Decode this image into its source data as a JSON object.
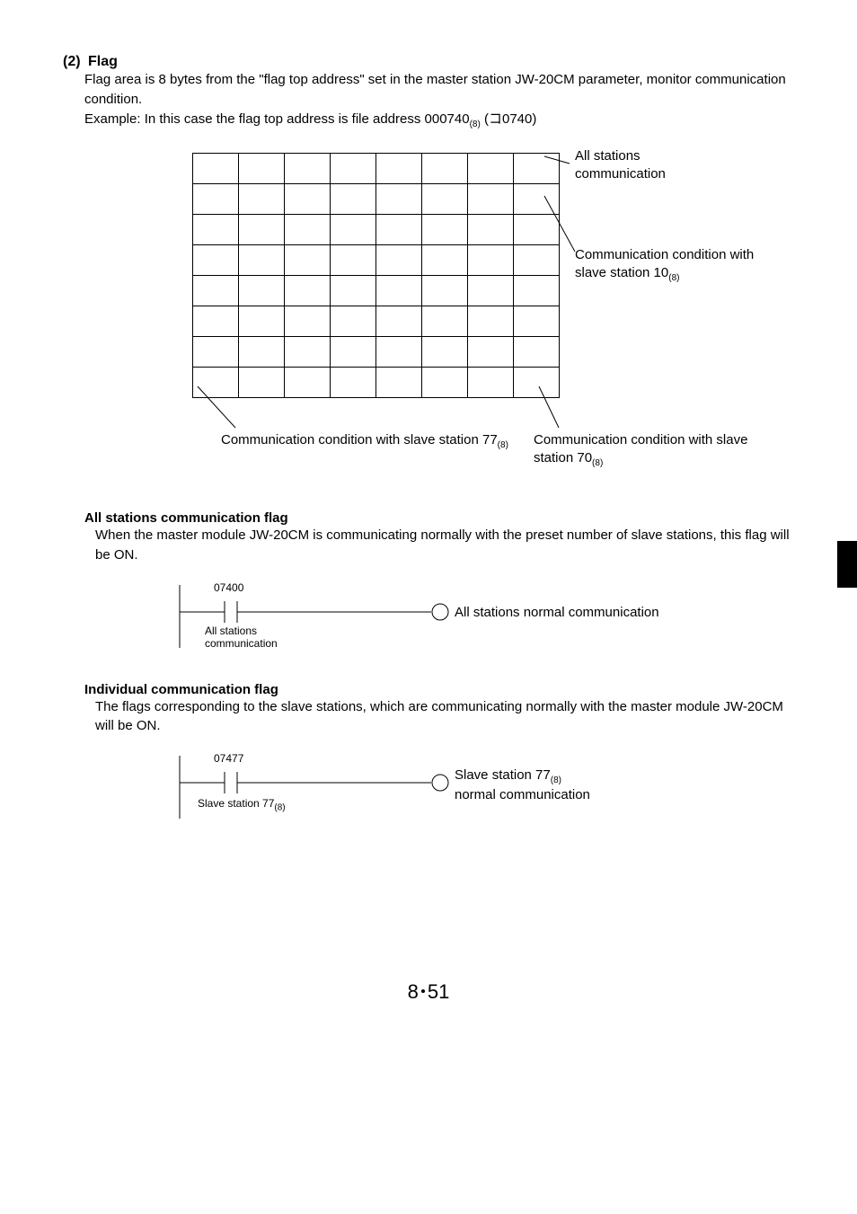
{
  "section": {
    "number": "(2)",
    "title": "Flag",
    "body1": "Flag area is 8 bytes from the \"flag top address\" set in the master station JW-20CM parameter, monitor communication condition.",
    "body2_prefix": "Example: In this case the flag top address is file address 000740",
    "body2_suffix": " (コ0740)"
  },
  "diagram": {
    "grid": {
      "rows": 8,
      "cols": 8
    },
    "labels": {
      "all_stations": "All stations\ncommunication",
      "slave10": "Communication condition\nwith slave station 10",
      "slave77": "Communication condition\nwith slave station 77",
      "slave70": "Communication condition\nwith slave station 70",
      "sub8": "(8)"
    }
  },
  "allflag": {
    "header": "All stations communication flag",
    "body": "When the master module JW-20CM is communicating normally with the preset number of slave stations, this flag will be ON.",
    "ladder": {
      "addr": "07400",
      "caption": "All stations\ncommunication",
      "output": "All stations normal communication"
    }
  },
  "indflag": {
    "header": "Individual communication flag",
    "body": "The flags corresponding to the slave stations, which are communicating normally with the master module JW-20CM will be ON.",
    "ladder": {
      "addr": "07477",
      "caption_prefix": "Slave station 77",
      "output_line1_prefix": "Slave station 77",
      "output_line2": "normal communication",
      "sub8": "(8)"
    }
  },
  "pagenum": {
    "chapter": "8",
    "page": "51"
  }
}
